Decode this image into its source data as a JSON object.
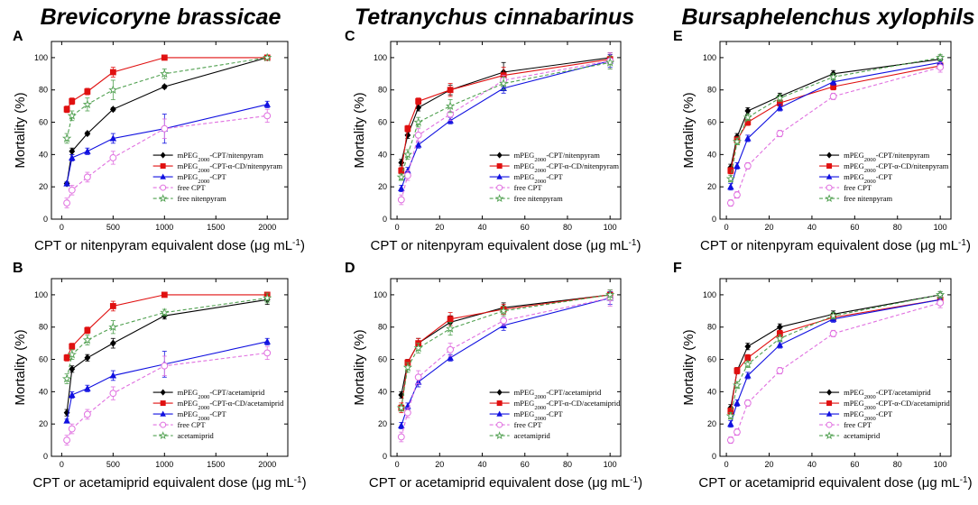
{
  "column_titles": [
    "Brevicoryne brassicae",
    "Tetranychus cinnabarinus",
    "Bursaphelenchus xylophils"
  ],
  "colors": {
    "black": "#000000",
    "red": "#e01010",
    "blue": "#1010e0",
    "pink": "#e070e0",
    "green": "#50a050"
  },
  "chart_data": [
    {
      "panel": "A",
      "type": "line",
      "xlabel": "CPT or nitenpyram equivalent dose (μg mL⁻¹)",
      "ylabel": "Mortality (%)",
      "xlim": [
        -100,
        2200
      ],
      "ylim": [
        0,
        110
      ],
      "xticks": [
        0,
        500,
        1000,
        1500,
        2000
      ],
      "yticks": [
        0,
        20,
        40,
        60,
        80,
        100
      ],
      "x": [
        50,
        100,
        250,
        500,
        1000,
        2000
      ],
      "series": [
        {
          "name": "mPEG2000-CPT/nitenpyram",
          "color": "black",
          "marker": "diamond",
          "dash": false,
          "values": [
            22,
            42,
            53,
            68,
            82,
            100
          ],
          "err": [
            1,
            2,
            1,
            1,
            1,
            0
          ]
        },
        {
          "name": "mPEG2000-CPT-α-CD/nitenpyram",
          "color": "red",
          "marker": "square",
          "dash": false,
          "values": [
            68,
            73,
            79,
            91,
            100,
            100
          ],
          "err": [
            2,
            2,
            2,
            3,
            0,
            0
          ]
        },
        {
          "name": "mPEG2000-CPT",
          "color": "blue",
          "marker": "triangle",
          "dash": false,
          "values": [
            22,
            38,
            42,
            50,
            56,
            71
          ],
          "err": [
            1,
            2,
            2,
            3,
            9,
            2
          ]
        },
        {
          "name": "free CPT",
          "color": "pink",
          "marker": "circle",
          "dash": true,
          "values": [
            10,
            18,
            26,
            38,
            56,
            64
          ],
          "err": [
            3,
            3,
            3,
            4,
            6,
            4
          ]
        },
        {
          "name": "free nitenpyram",
          "color": "green",
          "marker": "star",
          "dash": true,
          "values": [
            50,
            64,
            71,
            80,
            90,
            100
          ],
          "err": [
            3,
            3,
            4,
            6,
            3,
            0
          ]
        }
      ]
    },
    {
      "panel": "B",
      "type": "line",
      "xlabel": "CPT or acetamiprid equivalent dose (μg mL⁻¹)",
      "ylabel": "Mortality (%)",
      "xlim": [
        -100,
        2200
      ],
      "ylim": [
        0,
        110
      ],
      "xticks": [
        0,
        500,
        1000,
        1500,
        2000
      ],
      "yticks": [
        0,
        20,
        40,
        60,
        80,
        100
      ],
      "x": [
        50,
        100,
        250,
        500,
        1000,
        2000
      ],
      "series": [
        {
          "name": "mPEG2000-CPT/acetamiprid",
          "color": "black",
          "marker": "diamond",
          "dash": false,
          "values": [
            27,
            54,
            61,
            70,
            87,
            97
          ],
          "err": [
            2,
            2,
            2,
            3,
            2,
            3
          ]
        },
        {
          "name": "mPEG2000-CPT-α-CD/acetamiprid",
          "color": "red",
          "marker": "square",
          "dash": false,
          "values": [
            61,
            68,
            78,
            93,
            100,
            100
          ],
          "err": [
            2,
            2,
            2,
            3,
            0,
            0
          ]
        },
        {
          "name": "mPEG2000-CPT",
          "color": "blue",
          "marker": "triangle",
          "dash": false,
          "values": [
            22,
            38,
            42,
            50,
            57,
            71
          ],
          "err": [
            1,
            2,
            2,
            3,
            8,
            2
          ]
        },
        {
          "name": "free CPT",
          "color": "pink",
          "marker": "circle",
          "dash": true,
          "values": [
            10,
            17,
            26,
            39,
            56,
            64
          ],
          "err": [
            3,
            3,
            3,
            4,
            6,
            4
          ]
        },
        {
          "name": "acetamiprid",
          "color": "green",
          "marker": "star",
          "dash": true,
          "values": [
            48,
            63,
            72,
            80,
            89,
            98
          ],
          "err": [
            3,
            3,
            3,
            4,
            2,
            3
          ]
        }
      ]
    },
    {
      "panel": "C",
      "type": "line",
      "xlabel": "CPT or nitenpyram equivalent dose (μg mL⁻¹)",
      "ylabel": "Mortality (%)",
      "xlim": [
        -3,
        105
      ],
      "ylim": [
        0,
        110
      ],
      "xticks": [
        0,
        20,
        40,
        60,
        80,
        100
      ],
      "yticks": [
        0,
        20,
        40,
        60,
        80,
        100
      ],
      "x": [
        2,
        5,
        10,
        25,
        50,
        100
      ],
      "series": [
        {
          "name": "mPEG2000-CPT/nitenpyram",
          "color": "black",
          "marker": "diamond",
          "dash": false,
          "values": [
            35,
            52,
            69,
            80,
            91,
            100
          ],
          "err": [
            2,
            2,
            2,
            3,
            6,
            3
          ]
        },
        {
          "name": "mPEG2000-CPT-α-CD/nitenpyram",
          "color": "red",
          "marker": "square",
          "dash": false,
          "values": [
            30,
            56,
            73,
            80,
            89,
            99
          ],
          "err": [
            2,
            2,
            2,
            4,
            5,
            3
          ]
        },
        {
          "name": "mPEG2000-CPT",
          "color": "blue",
          "marker": "triangle",
          "dash": false,
          "values": [
            19,
            30,
            46,
            61,
            81,
            98
          ],
          "err": [
            2,
            2,
            2,
            2,
            3,
            4
          ]
        },
        {
          "name": "free CPT",
          "color": "pink",
          "marker": "circle",
          "dash": true,
          "values": [
            12,
            27,
            52,
            65,
            86,
            98
          ],
          "err": [
            3,
            3,
            4,
            4,
            3,
            5
          ]
        },
        {
          "name": "free nitenpyram",
          "color": "green",
          "marker": "star",
          "dash": true,
          "values": [
            26,
            40,
            60,
            70,
            84,
            97
          ],
          "err": [
            2,
            3,
            3,
            4,
            4,
            4
          ]
        }
      ]
    },
    {
      "panel": "D",
      "type": "line",
      "xlabel": "CPT or acetamiprid equivalent dose (μg mL⁻¹)",
      "ylabel": "Mortality (%)",
      "xlim": [
        -3,
        105
      ],
      "ylim": [
        0,
        110
      ],
      "xticks": [
        0,
        20,
        40,
        60,
        80,
        100
      ],
      "yticks": [
        0,
        20,
        40,
        60,
        80,
        100
      ],
      "x": [
        2,
        5,
        10,
        25,
        50,
        100
      ],
      "series": [
        {
          "name": "mPEG2000-CPT/acetamiprid",
          "color": "black",
          "marker": "diamond",
          "dash": false,
          "values": [
            38,
            58,
            70,
            83,
            92,
            100
          ],
          "err": [
            2,
            2,
            3,
            4,
            3,
            3
          ]
        },
        {
          "name": "mPEG2000-CPT-α-CD/acetamiprid",
          "color": "red",
          "marker": "square",
          "dash": false,
          "values": [
            30,
            58,
            70,
            85,
            91,
            100
          ],
          "err": [
            3,
            2,
            3,
            4,
            3,
            3
          ]
        },
        {
          "name": "mPEG2000-CPT",
          "color": "blue",
          "marker": "triangle",
          "dash": false,
          "values": [
            19,
            31,
            46,
            61,
            81,
            98
          ],
          "err": [
            2,
            2,
            3,
            2,
            3,
            4
          ]
        },
        {
          "name": "free CPT",
          "color": "pink",
          "marker": "circle",
          "dash": true,
          "values": [
            12,
            27,
            49,
            66,
            84,
            98
          ],
          "err": [
            3,
            3,
            4,
            4,
            3,
            5
          ]
        },
        {
          "name": "acetamiprid",
          "color": "green",
          "marker": "star",
          "dash": true,
          "values": [
            30,
            55,
            67,
            79,
            90,
            100
          ],
          "err": [
            2,
            3,
            3,
            4,
            3,
            3
          ]
        }
      ]
    },
    {
      "panel": "E",
      "type": "line",
      "xlabel": "CPT or nitenpyram equivalent dose (μg mL⁻¹)",
      "ylabel": "Mortality (%)",
      "xlim": [
        -3,
        105
      ],
      "ylim": [
        0,
        110
      ],
      "xticks": [
        0,
        20,
        40,
        60,
        80,
        100
      ],
      "yticks": [
        0,
        20,
        40,
        60,
        80,
        100
      ],
      "x": [
        2,
        5,
        10,
        25,
        50,
        100
      ],
      "series": [
        {
          "name": "mPEG2000-CPT/nitenpyram",
          "color": "black",
          "marker": "diamond",
          "dash": false,
          "values": [
            32,
            51,
            67,
            76,
            90,
            99
          ],
          "err": [
            2,
            2,
            2,
            2,
            2,
            2
          ]
        },
        {
          "name": "mPEG2000-CPT-α-CD/nitenpyram",
          "color": "red",
          "marker": "square",
          "dash": false,
          "values": [
            30,
            49,
            60,
            72,
            82,
            95
          ],
          "err": [
            2,
            2,
            2,
            2,
            2,
            2
          ]
        },
        {
          "name": "mPEG2000-CPT",
          "color": "blue",
          "marker": "triangle",
          "dash": false,
          "values": [
            20,
            33,
            50,
            69,
            85,
            97
          ],
          "err": [
            2,
            2,
            2,
            2,
            2,
            2
          ]
        },
        {
          "name": "free CPT",
          "color": "pink",
          "marker": "circle",
          "dash": true,
          "values": [
            10,
            15,
            33,
            53,
            76,
            94
          ],
          "err": [
            2,
            2,
            2,
            2,
            2,
            3
          ]
        },
        {
          "name": "free nitenpyram",
          "color": "green",
          "marker": "star",
          "dash": true,
          "values": [
            25,
            48,
            63,
            75,
            88,
            100
          ],
          "err": [
            2,
            2,
            2,
            2,
            2,
            2
          ]
        }
      ]
    },
    {
      "panel": "F",
      "type": "line",
      "xlabel": "CPT or acetamiprid equivalent dose (μg mL⁻¹)",
      "ylabel": "Mortality (%)",
      "xlim": [
        -3,
        105
      ],
      "ylim": [
        0,
        110
      ],
      "xticks": [
        0,
        20,
        40,
        60,
        80,
        100
      ],
      "yticks": [
        0,
        20,
        40,
        60,
        80,
        100
      ],
      "x": [
        2,
        5,
        10,
        25,
        50,
        100
      ],
      "series": [
        {
          "name": "mPEG2000-CPT/acetamiprid",
          "color": "black",
          "marker": "diamond",
          "dash": false,
          "values": [
            30,
            53,
            68,
            80,
            88,
            100
          ],
          "err": [
            2,
            2,
            2,
            2,
            2,
            2
          ]
        },
        {
          "name": "mPEG2000-CPT-α-CD/acetamiprid",
          "color": "red",
          "marker": "square",
          "dash": false,
          "values": [
            28,
            53,
            61,
            76,
            86,
            97
          ],
          "err": [
            2,
            2,
            2,
            2,
            2,
            2
          ]
        },
        {
          "name": "mPEG2000-CPT",
          "color": "blue",
          "marker": "triangle",
          "dash": false,
          "values": [
            20,
            33,
            50,
            69,
            85,
            97
          ],
          "err": [
            2,
            2,
            2,
            2,
            2,
            2
          ]
        },
        {
          "name": "free CPT",
          "color": "pink",
          "marker": "circle",
          "dash": true,
          "values": [
            10,
            15,
            33,
            53,
            76,
            95
          ],
          "err": [
            2,
            2,
            2,
            2,
            2,
            3
          ]
        },
        {
          "name": "acetamiprid",
          "color": "green",
          "marker": "star",
          "dash": true,
          "values": [
            25,
            44,
            57,
            73,
            87,
            100
          ],
          "err": [
            2,
            2,
            2,
            2,
            2,
            2
          ]
        }
      ]
    }
  ]
}
